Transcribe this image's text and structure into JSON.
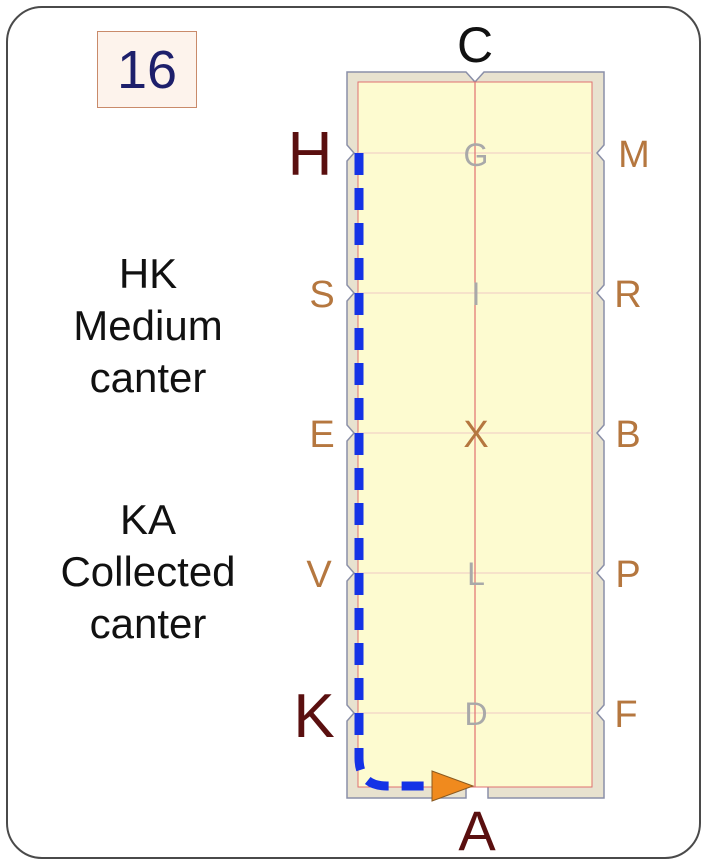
{
  "test_number": "16",
  "instructions": [
    {
      "letters": "HK",
      "lines": [
        "Medium",
        "canter"
      ]
    },
    {
      "letters": "KA",
      "lines": [
        "Collected",
        "canter"
      ]
    }
  ],
  "arena_letters": {
    "top": "C",
    "bottom": "A",
    "left": [
      "H",
      "S",
      "E",
      "V",
      "K"
    ],
    "right": [
      "M",
      "R",
      "B",
      "P",
      "F"
    ],
    "centerline": [
      "G",
      "I",
      "X",
      "L",
      "D"
    ]
  },
  "colors": {
    "arena_fill": "#fdfbd0",
    "arena_border": "#e8e2cf",
    "path": "#1432e6",
    "arrow": "#f08a1e",
    "active_letter": "#5a0f0f",
    "side_letter": "#b5773f",
    "center_letter": "#a9a9a9",
    "center_x": "#b5773f"
  }
}
